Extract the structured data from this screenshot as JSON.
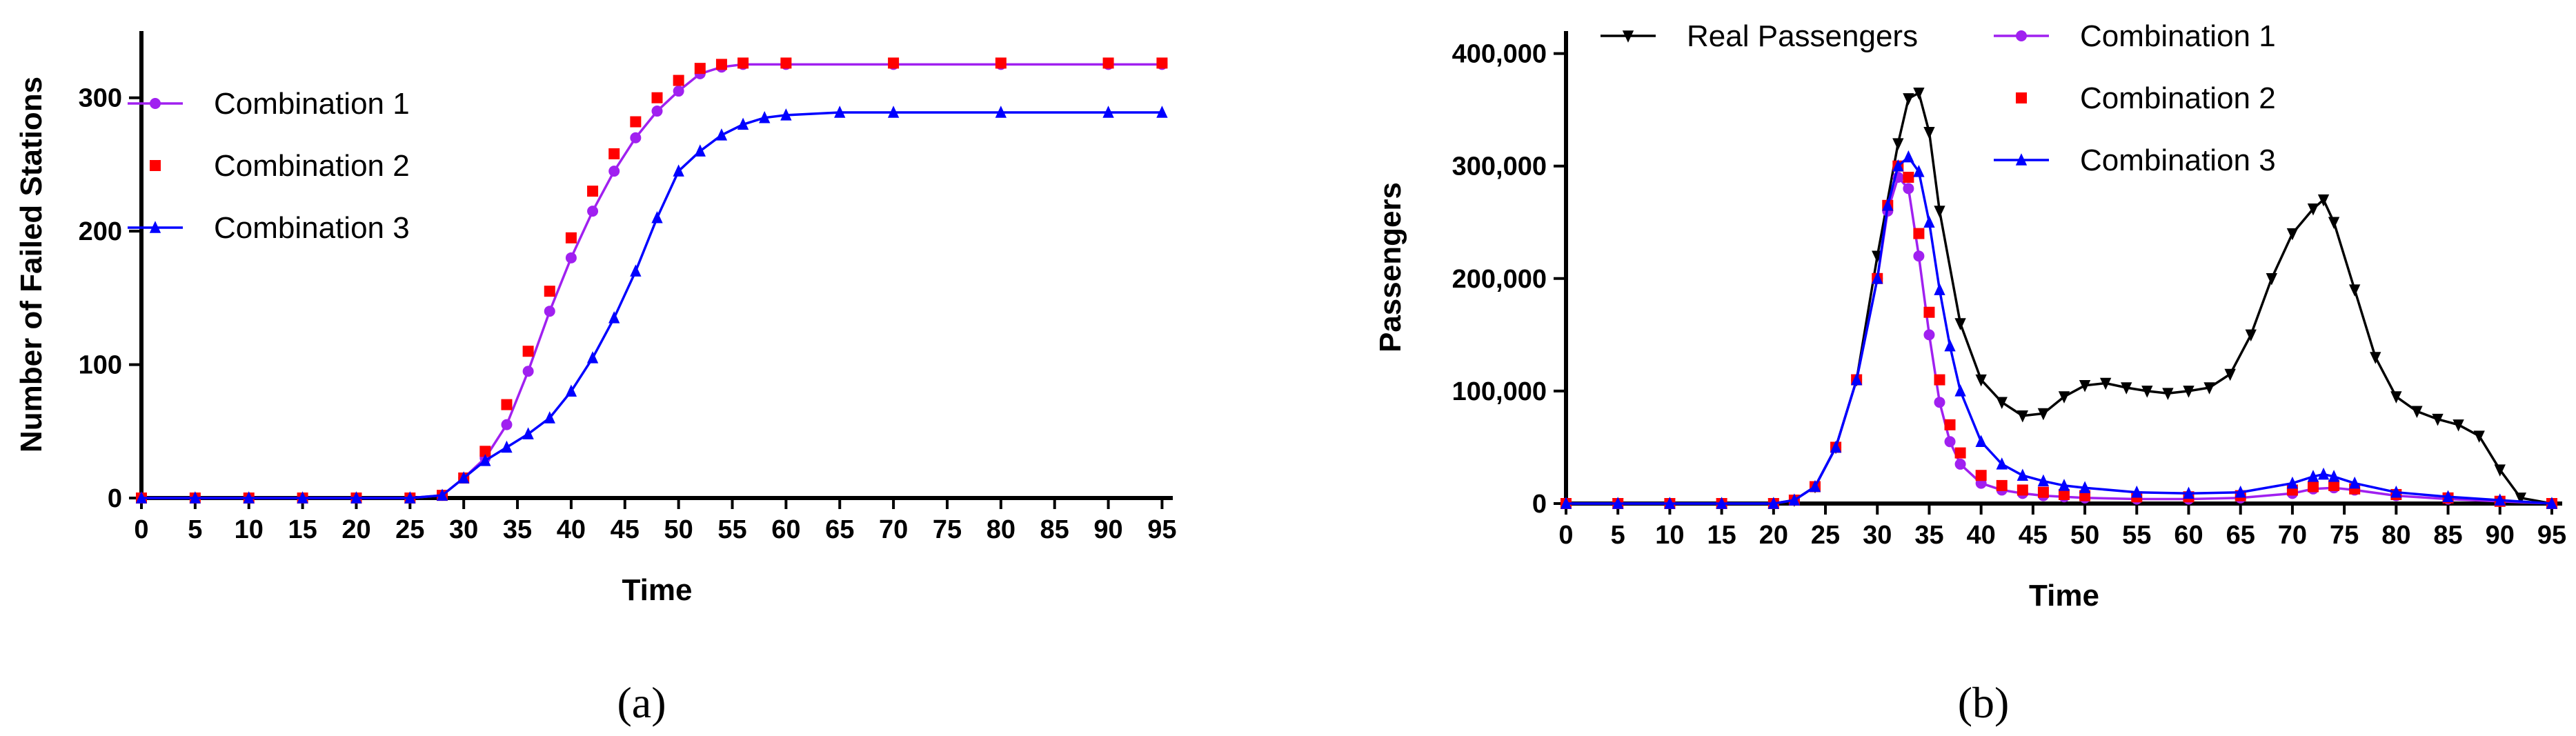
{
  "chart_data": [
    {
      "type": "line",
      "panel_label": "(a)",
      "xlabel": "Time",
      "ylabel": "Number of Failed Stations",
      "xlim": [
        0,
        96
      ],
      "ylim": [
        0,
        350
      ],
      "xticks": [
        0,
        5,
        10,
        15,
        20,
        25,
        30,
        35,
        40,
        45,
        50,
        55,
        60,
        65,
        70,
        75,
        80,
        85,
        90,
        95
      ],
      "yticks": [
        0,
        100,
        200,
        300
      ],
      "grid": false,
      "legend": "top-left",
      "series": [
        {
          "name": "Combination 1",
          "color": "#a020f0",
          "marker": "circle",
          "line": true,
          "x": [
            0,
            5,
            10,
            15,
            20,
            25,
            28,
            30,
            32,
            34,
            36,
            38,
            40,
            42,
            44,
            46,
            48,
            50,
            52,
            54,
            56,
            60,
            70,
            80,
            90,
            95
          ],
          "y": [
            0,
            0,
            0,
            0,
            0,
            0,
            2,
            15,
            30,
            55,
            95,
            140,
            180,
            215,
            245,
            270,
            290,
            305,
            318,
            323,
            325,
            325,
            325,
            325,
            325,
            325
          ]
        },
        {
          "name": "Combination 2",
          "color": "#ff0000",
          "marker": "square",
          "line": false,
          "x": [
            0,
            5,
            10,
            15,
            20,
            25,
            28,
            30,
            32,
            34,
            36,
            38,
            40,
            42,
            44,
            46,
            48,
            50,
            52,
            54,
            56,
            60,
            70,
            80,
            90,
            95
          ],
          "y": [
            0,
            0,
            0,
            0,
            0,
            0,
            2,
            15,
            35,
            70,
            110,
            155,
            195,
            230,
            258,
            282,
            300,
            313,
            322,
            325,
            326,
            326,
            326,
            326,
            326,
            326
          ]
        },
        {
          "name": "Combination 3",
          "color": "#0000ff",
          "marker": "triangle",
          "line": true,
          "x": [
            0,
            5,
            10,
            15,
            20,
            25,
            28,
            30,
            32,
            34,
            36,
            38,
            40,
            42,
            44,
            46,
            48,
            50,
            52,
            54,
            56,
            58,
            60,
            65,
            70,
            80,
            90,
            95
          ],
          "y": [
            0,
            0,
            0,
            0,
            0,
            0,
            2,
            15,
            28,
            38,
            48,
            60,
            80,
            105,
            135,
            170,
            210,
            245,
            260,
            272,
            280,
            285,
            287,
            289,
            289,
            289,
            289,
            289
          ]
        }
      ]
    },
    {
      "type": "line",
      "panel_label": "(b)",
      "xlabel": "Time",
      "ylabel": "Passengers",
      "xlim": [
        0,
        96
      ],
      "ylim": [
        0,
        420000
      ],
      "xticks": [
        0,
        5,
        10,
        15,
        20,
        25,
        30,
        35,
        40,
        45,
        50,
        55,
        60,
        65,
        70,
        75,
        80,
        85,
        90,
        95
      ],
      "yticks": [
        0,
        100000,
        200000,
        300000,
        400000
      ],
      "ytick_labels": [
        "0",
        "100,000",
        "200,000",
        "300,000",
        "400,000"
      ],
      "grid": false,
      "legend": "top",
      "series": [
        {
          "name": "Real Passengers",
          "color": "#000000",
          "marker": "triangle-down",
          "line": true,
          "x": [
            0,
            5,
            10,
            15,
            20,
            22,
            24,
            26,
            28,
            30,
            32,
            33,
            34,
            35,
            36,
            38,
            40,
            42,
            44,
            46,
            48,
            50,
            52,
            54,
            56,
            58,
            60,
            62,
            64,
            66,
            68,
            70,
            72,
            73,
            74,
            76,
            78,
            80,
            82,
            84,
            86,
            88,
            90,
            92,
            95
          ],
          "y": [
            0,
            0,
            0,
            0,
            0,
            3000,
            15000,
            50000,
            110000,
            220000,
            320000,
            360000,
            365000,
            330000,
            260000,
            160000,
            110000,
            90000,
            78000,
            80000,
            95000,
            105000,
            107000,
            103000,
            100000,
            98000,
            100000,
            103000,
            115000,
            150000,
            200000,
            240000,
            262000,
            270000,
            250000,
            190000,
            130000,
            95000,
            82000,
            75000,
            70000,
            60000,
            30000,
            5000,
            0
          ]
        },
        {
          "name": "Combination 1",
          "color": "#a020f0",
          "marker": "circle",
          "line": true,
          "x": [
            0,
            5,
            10,
            15,
            20,
            22,
            24,
            26,
            28,
            30,
            31,
            32,
            33,
            34,
            35,
            36,
            37,
            38,
            40,
            42,
            44,
            46,
            48,
            50,
            55,
            60,
            65,
            70,
            72,
            74,
            76,
            80,
            85,
            90,
            95
          ],
          "y": [
            0,
            0,
            0,
            0,
            0,
            3000,
            15000,
            50000,
            110000,
            200000,
            260000,
            290000,
            280000,
            220000,
            150000,
            90000,
            55000,
            35000,
            18000,
            12000,
            9000,
            7000,
            6000,
            5000,
            4000,
            4000,
            5000,
            9000,
            13000,
            14000,
            12000,
            7000,
            4000,
            2000,
            0
          ]
        },
        {
          "name": "Combination 2",
          "color": "#ff0000",
          "marker": "square",
          "line": false,
          "x": [
            0,
            5,
            10,
            15,
            20,
            22,
            24,
            26,
            28,
            30,
            31,
            32,
            33,
            34,
            35,
            36,
            37,
            38,
            40,
            42,
            44,
            46,
            48,
            50,
            55,
            60,
            65,
            70,
            72,
            74,
            76,
            80,
            85,
            90,
            95
          ],
          "y": [
            0,
            0,
            0,
            0,
            0,
            3000,
            15000,
            50000,
            110000,
            200000,
            265000,
            300000,
            290000,
            240000,
            170000,
            110000,
            70000,
            45000,
            25000,
            16000,
            12000,
            10000,
            8000,
            7000,
            6000,
            6000,
            7000,
            12000,
            15000,
            16000,
            13000,
            8000,
            5000,
            2000,
            0
          ]
        },
        {
          "name": "Combination 3",
          "color": "#0000ff",
          "marker": "triangle",
          "line": true,
          "x": [
            0,
            5,
            10,
            15,
            20,
            22,
            24,
            26,
            28,
            30,
            31,
            32,
            33,
            34,
            35,
            36,
            37,
            38,
            40,
            42,
            44,
            46,
            48,
            50,
            55,
            60,
            65,
            70,
            72,
            73,
            74,
            76,
            80,
            85,
            90,
            95
          ],
          "y": [
            0,
            0,
            0,
            0,
            0,
            3000,
            15000,
            50000,
            110000,
            200000,
            265000,
            300000,
            308000,
            295000,
            250000,
            190000,
            140000,
            100000,
            55000,
            35000,
            25000,
            20000,
            16000,
            14000,
            10000,
            9000,
            10000,
            18000,
            24000,
            26000,
            24000,
            18000,
            10000,
            6000,
            3000,
            0
          ]
        }
      ]
    }
  ]
}
